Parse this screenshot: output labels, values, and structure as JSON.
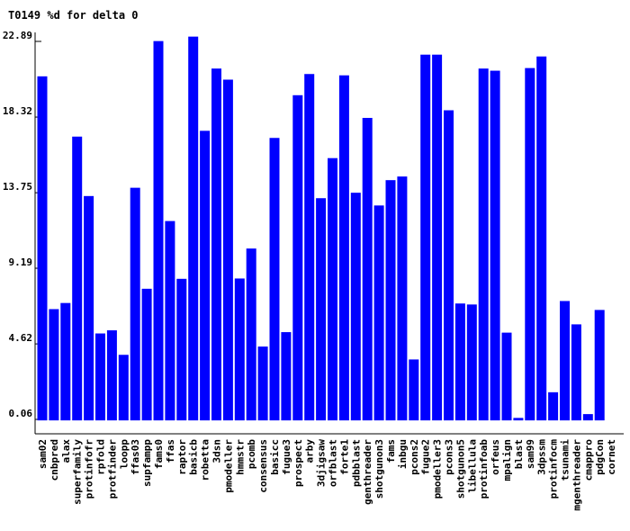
{
  "chart_data": {
    "type": "bar",
    "title": "T0149 %d for delta 0",
    "xlabel": "",
    "ylabel": "",
    "ylim": [
      0.06,
      22.89
    ],
    "yticks": [
      "0.06",
      "4.62",
      "9.19",
      "13.75",
      "18.32",
      "22.89"
    ],
    "grid": "horizontal lines at y ticks",
    "bar_color": "#0000ff",
    "categories": [
      "sam02",
      "cnbpred",
      "alax",
      "superfamily",
      "protinfofr",
      "rpfold",
      "protfinder",
      "loopp",
      "ffas03",
      "supfampp",
      "fams0",
      "ffas",
      "raptor",
      "basicb",
      "robetta",
      "3dsn",
      "pmodeller",
      "hmmstr",
      "pcomb",
      "consensus",
      "basicc",
      "fugue3",
      "prospect",
      "arby",
      "3djigsaw",
      "orfblast",
      "forte1",
      "pdbblast",
      "genthreader",
      "shotgunon3",
      "fams",
      "inbgu",
      "pcons2",
      "fugue2",
      "pmodeller3",
      "pcons3",
      "shotgunon5",
      "libellula",
      "protinfoab",
      "orfeus",
      "mpalign",
      "blast",
      "sam99",
      "3dpssm",
      "protinfocm",
      "tsunami",
      "mgenthreader",
      "cmappro",
      "pdgCon",
      "cornet"
    ],
    "values": [
      20.78,
      6.72,
      7.09,
      17.14,
      13.55,
      5.25,
      5.44,
      3.96,
      14.05,
      7.95,
      22.91,
      12.04,
      8.55,
      23.18,
      17.49,
      21.25,
      20.58,
      8.57,
      10.38,
      4.46,
      17.06,
      5.33,
      19.64,
      20.92,
      13.42,
      15.84,
      20.84,
      13.75,
      18.27,
      12.98,
      14.51,
      14.73,
      3.68,
      22.09,
      22.09,
      18.73,
      7.06,
      7.0,
      21.25,
      21.12,
      5.3,
      0.15,
      21.28,
      21.98,
      1.7,
      7.21,
      5.8,
      0.38,
      6.67,
      null
    ]
  }
}
